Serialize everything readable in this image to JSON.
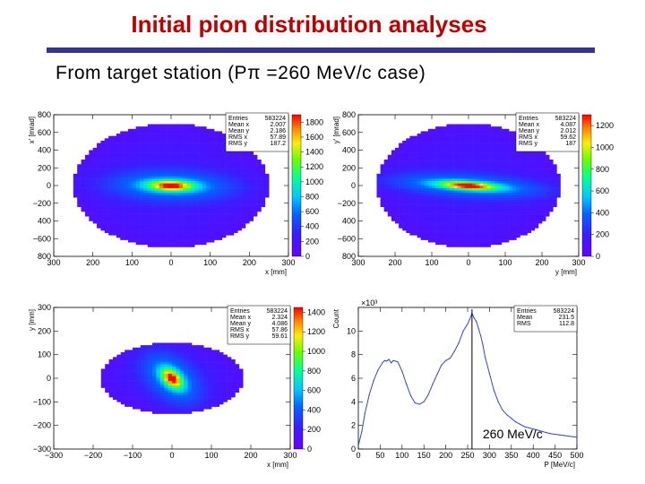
{
  "slide": {
    "title": "Initial pion distribution analyses",
    "subtitle": "From  target  station  (Pπ =260  MeV/c  case)"
  },
  "colors": {
    "title": "#c00000",
    "rule": "#333399"
  },
  "chart_data": [
    {
      "type": "heatmap",
      "xlabel": "x [mm]",
      "ylabel": "x' [mrad]",
      "xticks": [
        -300,
        -200,
        -100,
        0,
        100,
        200,
        300
      ],
      "xtick_labels": [
        "300",
        "200",
        "100",
        "0",
        "100",
        "200",
        "300"
      ],
      "yticks": [
        -800,
        -600,
        -400,
        -200,
        0,
        200,
        400,
        600,
        800
      ],
      "ytick_labels": [
        "800",
        "−600",
        "400",
        "−200",
        "0",
        "200",
        "400",
        "600",
        "800"
      ],
      "xlim": [
        -300,
        300
      ],
      "ylim": [
        -800,
        800
      ],
      "colorbar": {
        "min": 0,
        "max": 1900,
        "ticks": [
          0,
          200,
          400,
          600,
          800,
          1000,
          1200,
          1400,
          1600,
          1800
        ]
      },
      "stats": [
        {
          "label": "Entries",
          "value": "583224"
        },
        {
          "label": "Mean x",
          "value": "2.007"
        },
        {
          "label": "Mean y",
          "value": "2.186"
        },
        {
          "label": "RMS x",
          "value": "57.89"
        },
        {
          "label": "RMS y",
          "value": "187.2"
        }
      ],
      "distribution": {
        "core_width": [
          40,
          40
        ],
        "halo_width": [
          250,
          700
        ],
        "tilt": -0.05
      }
    },
    {
      "type": "heatmap",
      "xlabel": "y [mm]",
      "ylabel": "y' [mrad]",
      "xticks": [
        -300,
        -200,
        -100,
        0,
        100,
        200,
        300
      ],
      "xtick_labels": [
        "300",
        "200",
        "100",
        "0",
        "100",
        "200",
        "300"
      ],
      "yticks": [
        -800,
        -600,
        -400,
        -200,
        0,
        200,
        400,
        600,
        800
      ],
      "ytick_labels": [
        "800",
        "−600",
        "400",
        "−200",
        "0",
        "200",
        "400",
        "600",
        "800"
      ],
      "xlim": [
        -300,
        300
      ],
      "ylim": [
        -800,
        800
      ],
      "colorbar": {
        "min": 0,
        "max": 1300,
        "ticks": [
          0,
          200,
          400,
          600,
          800,
          1000,
          1200
        ]
      },
      "stats": [
        {
          "label": "Entries",
          "value": "583224"
        },
        {
          "label": "Mean x",
          "value": "4.087"
        },
        {
          "label": "Mean y",
          "value": "2.012"
        },
        {
          "label": "RMS x",
          "value": "59.62"
        },
        {
          "label": "RMS y",
          "value": "187"
        }
      ],
      "distribution": {
        "core_width": [
          55,
          30
        ],
        "halo_width": [
          250,
          700
        ],
        "tilt": -0.1
      }
    },
    {
      "type": "heatmap",
      "xlabel": "x [mm]",
      "ylabel": "y [mm]",
      "xticks": [
        -300,
        -200,
        -100,
        0,
        100,
        200,
        300
      ],
      "xtick_labels": [
        "−300",
        "−200",
        "−100",
        "0",
        "100",
        "200",
        "300"
      ],
      "yticks": [
        -300,
        -200,
        -100,
        0,
        100,
        200,
        300
      ],
      "ytick_labels": [
        "−300",
        "−200",
        "−100",
        "0",
        "100",
        "200",
        "300"
      ],
      "xlim": [
        -300,
        300
      ],
      "ylim": [
        -300,
        300
      ],
      "colorbar": {
        "min": 0,
        "max": 1450,
        "ticks": [
          0,
          200,
          400,
          600,
          800,
          1000,
          1200,
          1400
        ]
      },
      "stats": [
        {
          "label": "Entries",
          "value": "583224"
        },
        {
          "label": "Mean x",
          "value": "2.324"
        },
        {
          "label": "Mean y",
          "value": "4.086"
        },
        {
          "label": "RMS x",
          "value": "57.86"
        },
        {
          "label": "RMS y",
          "value": "59.61"
        }
      ],
      "distribution": {
        "core_width": [
          15,
          30
        ],
        "halo_width": [
          180,
          150
        ],
        "tilt": 0.4
      }
    },
    {
      "type": "line",
      "xlabel": "P [MeV/c]",
      "ylabel": "Count",
      "y_multiplier": "×10³",
      "xticks": [
        0,
        50,
        100,
        150,
        200,
        250,
        300,
        350,
        400,
        450,
        500
      ],
      "yticks": [
        0,
        2,
        4,
        6,
        8,
        10
      ],
      "xlim": [
        0,
        500
      ],
      "ylim": [
        0,
        12
      ],
      "stats": [
        {
          "label": "Entries",
          "value": "583224"
        },
        {
          "label": "Mean",
          "value": "231.5"
        },
        {
          "label": "RMS",
          "value": "112.8"
        }
      ],
      "x": [
        0,
        8,
        15,
        25,
        35,
        45,
        55,
        60,
        65,
        70,
        75,
        80,
        90,
        100,
        110,
        120,
        130,
        140,
        150,
        160,
        170,
        180,
        190,
        200,
        210,
        220,
        230,
        240,
        250,
        255,
        260,
        265,
        270,
        275,
        280,
        285,
        290,
        300,
        310,
        320,
        330,
        340,
        350,
        360,
        370,
        380,
        390,
        400,
        410,
        420,
        430,
        440,
        450,
        460,
        470,
        480,
        490,
        500
      ],
      "y": [
        0.3,
        1.5,
        3.0,
        4.6,
        5.8,
        6.7,
        7.3,
        7.5,
        7.45,
        7.6,
        7.3,
        7.5,
        7.4,
        6.6,
        5.5,
        4.5,
        3.9,
        3.8,
        4.0,
        4.6,
        5.5,
        6.3,
        7.1,
        7.5,
        7.7,
        8.3,
        9.0,
        10.0,
        10.6,
        11.0,
        11.5,
        11.1,
        10.8,
        10.2,
        9.6,
        8.8,
        7.8,
        6.4,
        5.0,
        4.0,
        3.3,
        2.9,
        2.6,
        2.3,
        2.1,
        1.9,
        1.8,
        1.7,
        1.6,
        1.5,
        1.4,
        1.3,
        1.25,
        1.2,
        1.15,
        1.1,
        1.05,
        1.0
      ],
      "marker_x": 260,
      "annotation": "260 MeV/c"
    }
  ]
}
